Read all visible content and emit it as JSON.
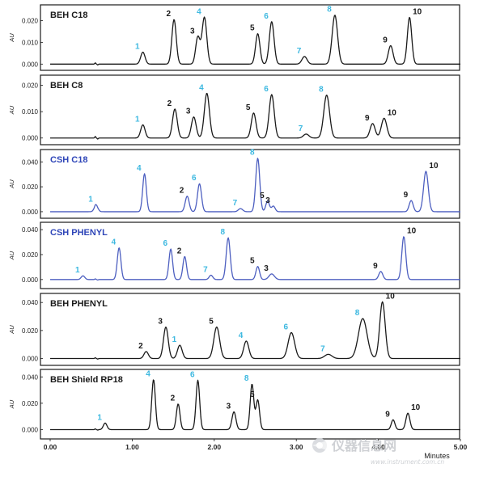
{
  "chart_data": {
    "type": "line",
    "x_axis": {
      "label": "Minutes",
      "ticks": [
        "0.00",
        "1.00",
        "2.00",
        "3.00",
        "4.00",
        "5.00"
      ],
      "xlim": [
        0,
        5
      ]
    },
    "colors": {
      "black_trace": "#1a1a1a",
      "blue_trace": "#4d5fc0",
      "cyan_label": "#3cb8e0",
      "blue_title": "#2f46b8"
    },
    "panels": [
      {
        "title": "BEH C18",
        "title_color": "#1a1a1a",
        "trace_color": "#1a1a1a",
        "ylabel": "AU",
        "ylim": [
          -0.001,
          0.025
        ],
        "y_ticks": [
          "0.000",
          "0.010",
          "0.020"
        ],
        "y_tick_values": [
          0,
          0.01,
          0.02
        ],
        "peaks": [
          {
            "label": "1",
            "rt": 1.13,
            "height": 0.0055,
            "width": 0.012
          },
          {
            "label": "2",
            "rt": 1.51,
            "height": 0.0205,
            "width": 0.012
          },
          {
            "label": "3",
            "rt": 1.8,
            "height": 0.0125,
            "width": 0.012
          },
          {
            "label": "4",
            "rt": 1.88,
            "height": 0.0215,
            "width": 0.013
          },
          {
            "label": "5",
            "rt": 2.53,
            "height": 0.014,
            "width": 0.012
          },
          {
            "label": "6",
            "rt": 2.7,
            "height": 0.0195,
            "width": 0.013
          },
          {
            "label": "7",
            "rt": 3.1,
            "height": 0.0035,
            "width": 0.014
          },
          {
            "label": "8",
            "rt": 3.47,
            "height": 0.0225,
            "width": 0.015
          },
          {
            "label": "9",
            "rt": 4.15,
            "height": 0.0085,
            "width": 0.013
          },
          {
            "label": "10",
            "rt": 4.38,
            "height": 0.0215,
            "width": 0.012
          }
        ]
      },
      {
        "title": "BEH C8",
        "title_color": "#1a1a1a",
        "trace_color": "#1a1a1a",
        "ylabel": "AU",
        "ylim": [
          -0.001,
          0.022
        ],
        "y_ticks": [
          "0.000",
          "0.010",
          "0.020"
        ],
        "y_tick_values": [
          0,
          0.01,
          0.02
        ],
        "peaks": [
          {
            "label": "1",
            "rt": 1.13,
            "height": 0.005,
            "width": 0.012
          },
          {
            "label": "2",
            "rt": 1.52,
            "height": 0.011,
            "width": 0.013
          },
          {
            "label": "3",
            "rt": 1.75,
            "height": 0.008,
            "width": 0.013
          },
          {
            "label": "4",
            "rt": 1.91,
            "height": 0.017,
            "width": 0.014
          },
          {
            "label": "5",
            "rt": 2.48,
            "height": 0.0095,
            "width": 0.013
          },
          {
            "label": "6",
            "rt": 2.7,
            "height": 0.0165,
            "width": 0.014
          },
          {
            "label": "7",
            "rt": 3.12,
            "height": 0.0015,
            "width": 0.015
          },
          {
            "label": "8",
            "rt": 3.37,
            "height": 0.0163,
            "width": 0.016
          },
          {
            "label": "9",
            "rt": 3.93,
            "height": 0.0055,
            "width": 0.014
          },
          {
            "label": "10",
            "rt": 4.07,
            "height": 0.0075,
            "width": 0.015
          }
        ]
      },
      {
        "title": "CSH C18",
        "title_color": "#2f46b8",
        "trace_color": "#4d5fc0",
        "ylabel": "AU",
        "ylim": [
          -0.002,
          0.046
        ],
        "y_ticks": [
          "0.000",
          "0.020",
          "0.040"
        ],
        "y_tick_values": [
          0,
          0.02,
          0.04
        ],
        "peaks": [
          {
            "label": "1",
            "rt": 0.56,
            "height": 0.0055,
            "width": 0.01
          },
          {
            "label": "4",
            "rt": 1.15,
            "height": 0.0305,
            "width": 0.01
          },
          {
            "label": "2",
            "rt": 1.67,
            "height": 0.0125,
            "width": 0.011
          },
          {
            "label": "6",
            "rt": 1.82,
            "height": 0.0225,
            "width": 0.011
          },
          {
            "label": "7",
            "rt": 2.32,
            "height": 0.0025,
            "width": 0.012
          },
          {
            "label": "8",
            "rt": 2.53,
            "height": 0.043,
            "width": 0.011
          },
          {
            "label": "5",
            "rt": 2.65,
            "height": 0.0085,
            "width": 0.01
          },
          {
            "label": "3",
            "rt": 2.72,
            "height": 0.0045,
            "width": 0.01
          },
          {
            "label": "9",
            "rt": 4.4,
            "height": 0.009,
            "width": 0.011
          },
          {
            "label": "10",
            "rt": 4.58,
            "height": 0.0325,
            "width": 0.013
          }
        ]
      },
      {
        "title": "CSH PHENYL",
        "title_color": "#2f46b8",
        "trace_color": "#4d5fc0",
        "ylabel": "AU",
        "ylim": [
          -0.004,
          0.042
        ],
        "y_ticks": [
          "0.000",
          "0.020",
          "0.040"
        ],
        "y_tick_values": [
          0,
          0.02,
          0.04
        ],
        "peaks": [
          {
            "label": "1",
            "rt": 0.4,
            "height": 0.003,
            "width": 0.01
          },
          {
            "label": "4",
            "rt": 0.84,
            "height": 0.0255,
            "width": 0.01
          },
          {
            "label": "6",
            "rt": 1.47,
            "height": 0.0245,
            "width": 0.01
          },
          {
            "label": "2",
            "rt": 1.64,
            "height": 0.0185,
            "width": 0.01
          },
          {
            "label": "7",
            "rt": 1.96,
            "height": 0.0035,
            "width": 0.01
          },
          {
            "label": "8",
            "rt": 2.17,
            "height": 0.0335,
            "width": 0.011
          },
          {
            "label": "5",
            "rt": 2.53,
            "height": 0.0105,
            "width": 0.01
          },
          {
            "label": "3",
            "rt": 2.7,
            "height": 0.0045,
            "width": 0.015
          },
          {
            "label": "9",
            "rt": 4.03,
            "height": 0.0065,
            "width": 0.011
          },
          {
            "label": "10",
            "rt": 4.31,
            "height": 0.0345,
            "width": 0.011
          }
        ]
      },
      {
        "title": "BEH PHENYL",
        "title_color": "#1a1a1a",
        "trace_color": "#1a1a1a",
        "ylabel": "AU",
        "ylim": [
          -0.002,
          0.043
        ],
        "y_ticks": [
          "0.000",
          "0.020",
          "0.040"
        ],
        "y_tick_values": [
          0,
          0.02,
          0.04
        ],
        "peaks": [
          {
            "label": "2",
            "rt": 1.17,
            "height": 0.005,
            "width": 0.012
          },
          {
            "label": "3",
            "rt": 1.41,
            "height": 0.0225,
            "width": 0.013
          },
          {
            "label": "1",
            "rt": 1.58,
            "height": 0.0095,
            "width": 0.013
          },
          {
            "label": "5",
            "rt": 2.03,
            "height": 0.0225,
            "width": 0.016
          },
          {
            "label": "4",
            "rt": 2.39,
            "height": 0.0125,
            "width": 0.014
          },
          {
            "label": "6",
            "rt": 2.94,
            "height": 0.0185,
            "width": 0.018
          },
          {
            "label": "7",
            "rt": 3.39,
            "height": 0.003,
            "width": 0.02
          },
          {
            "label": "8",
            "rt": 3.81,
            "height": 0.0285,
            "width": 0.024
          },
          {
            "label": "10",
            "rt": 4.05,
            "height": 0.0405,
            "width": 0.015
          }
        ]
      },
      {
        "title": "BEH Shield RP18",
        "title_color": "#1a1a1a",
        "trace_color": "#1a1a1a",
        "ylabel": "AU",
        "ylim": [
          -0.004,
          0.042
        ],
        "y_ticks": [
          "0.000",
          "0.020",
          "0.040"
        ],
        "y_tick_values": [
          0,
          0.02,
          0.04
        ],
        "peaks": [
          {
            "label": "1",
            "rt": 0.67,
            "height": 0.005,
            "width": 0.01
          },
          {
            "label": "4",
            "rt": 1.26,
            "height": 0.038,
            "width": 0.01
          },
          {
            "label": "2",
            "rt": 1.56,
            "height": 0.0195,
            "width": 0.01
          },
          {
            "label": "6",
            "rt": 1.8,
            "height": 0.0375,
            "width": 0.01
          },
          {
            "label": "3",
            "rt": 2.24,
            "height": 0.0135,
            "width": 0.011
          },
          {
            "label": "8",
            "rt": 2.46,
            "height": 0.0345,
            "width": 0.01
          },
          {
            "label": "5",
            "rt": 2.53,
            "height": 0.0225,
            "width": 0.01
          },
          {
            "label": "9",
            "rt": 4.18,
            "height": 0.0075,
            "width": 0.01
          },
          {
            "label": "10",
            "rt": 4.36,
            "height": 0.0125,
            "width": 0.011
          }
        ]
      }
    ]
  },
  "watermark": {
    "text": "仪器信息网",
    "url": "www.instrument.com.cn"
  }
}
